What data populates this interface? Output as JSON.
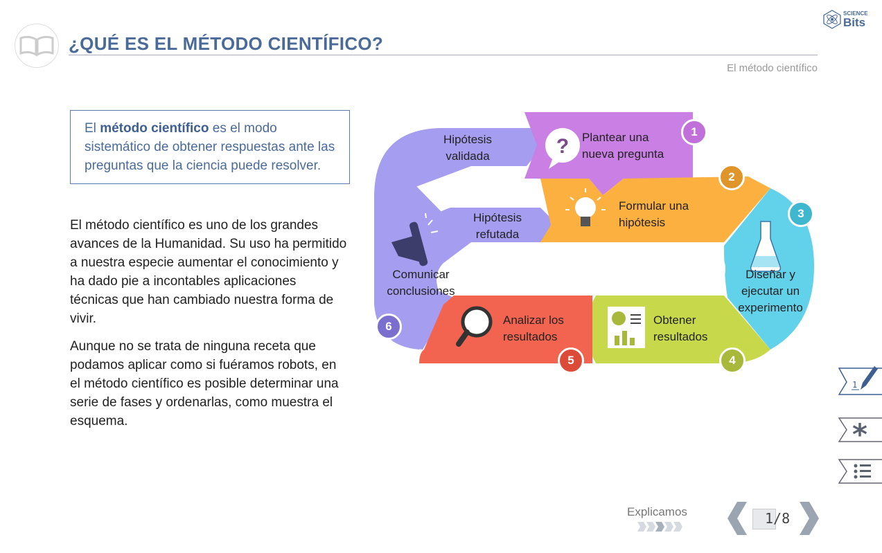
{
  "header": {
    "title": "¿QUÉ ES EL MÉTODO CIENTÍFICO?",
    "subtitle": "El método científico",
    "logo_top": "SCIENCE",
    "logo_bottom": "Bits"
  },
  "definition": {
    "pre": "El ",
    "bold": "método científico",
    "post": " es el modo sistemático de obtener respuestas ante las preguntas que la ciencia puede resolver."
  },
  "paragraphs": [
    "El método científico es uno de los grandes avances de la Humanidad. Su uso ha permitido a nuestra especie aumentar el conocimiento y ha dado pie a incontables aplicaciones técnicas que han cambiado nuestra forma de vivir.",
    "Aunque no se trata de ninguna receta que podamos aplicar como si fuéramos robots, en el método científico es posible determinar una serie de fases y ordenarlas, como muestra el esquema."
  ],
  "diagram": {
    "steps": [
      {
        "num": "1",
        "label": "Plantear una nueva pregunta",
        "color": "#c97fe3",
        "badge": "#c070d8",
        "icon": "question-bubble-icon"
      },
      {
        "num": "2",
        "label": "Formular una hipótesis",
        "color": "#fbb040",
        "badge": "#e0952a",
        "icon": "lightbulb-icon"
      },
      {
        "num": "3",
        "label": "Diseñar y ejecutar un experimento",
        "color": "#62d1ea",
        "badge": "#3eb7cf",
        "icon": "flask-icon"
      },
      {
        "num": "4",
        "label": "Obtener resultados",
        "color": "#c8d84b",
        "badge": "#a8b83a",
        "icon": "report-chart-icon"
      },
      {
        "num": "5",
        "label": "Analizar los resultados",
        "color": "#f2644f",
        "badge": "#dc4a38",
        "icon": "magnifier-icon"
      },
      {
        "num": "6",
        "label": "Comunicar conclusiones",
        "color": "#a59ef0",
        "badge": "#7a6fcf",
        "icon": "megaphone-icon"
      }
    ],
    "validated": "Hipótesis validada",
    "refuted": "Hipótesis refutada"
  },
  "footer": {
    "section": "Explicamos",
    "page_current": "1",
    "page_total": "/8",
    "progress_active_index": 2,
    "progress_count": 5
  },
  "side_tools": {
    "notes_number": "1"
  },
  "colors": {
    "accent": "#4a6b9a",
    "nav": "#9aa5b1"
  }
}
